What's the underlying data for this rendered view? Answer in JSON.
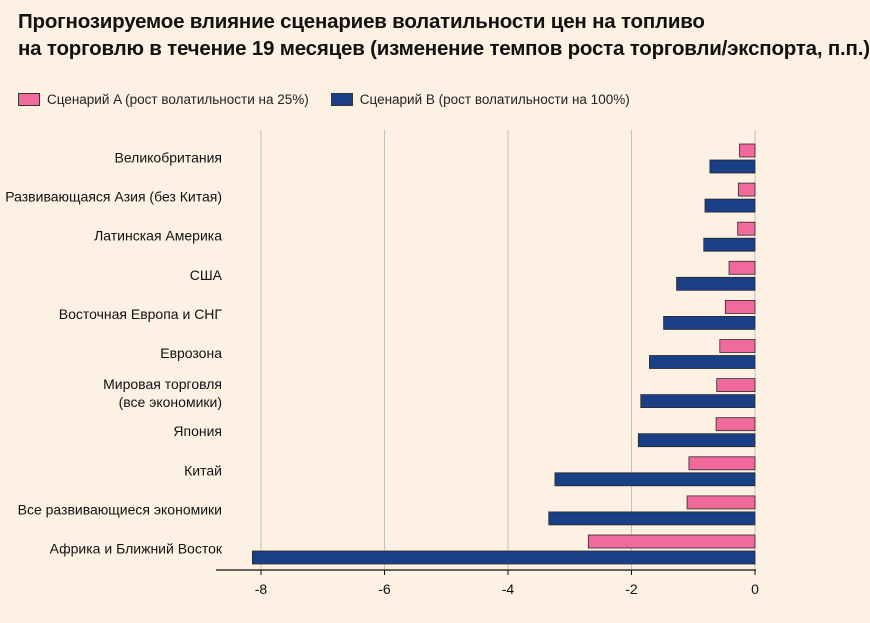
{
  "title_line1": "Прогнозируемое влияние сценариев волатильности цен на топливо",
  "title_line2": "на торговлю в течение 19 месяцев (изменение темпов роста торговли/экспорта, п.п.)",
  "chart_data": {
    "type": "bar",
    "orientation": "horizontal",
    "title": "Прогнозируемое влияние сценариев волатильности цен на топливо на торговлю в течение 19 месяцев (изменение темпов роста торговли/экспорта, п.п.)",
    "categories": [
      [
        "Великобритания"
      ],
      [
        "Развивающаяся Азия (без Китая)"
      ],
      [
        "Латинская Америка"
      ],
      [
        "США"
      ],
      [
        "Восточная Европа и СНГ"
      ],
      [
        "Еврозона"
      ],
      [
        "Мировая торговля",
        "(все экономики)"
      ],
      [
        "Япония"
      ],
      [
        "Китай"
      ],
      [
        "Все развивающиеся экономики"
      ],
      [
        "Африка и Ближний Восток"
      ]
    ],
    "series": [
      {
        "name": "Сценарий A (рост волатильности на 25%)",
        "color": "#f06a9c",
        "values": [
          -0.25,
          -0.27,
          -0.28,
          -0.42,
          -0.48,
          -0.57,
          -0.62,
          -0.63,
          -1.07,
          -1.1,
          -2.7
        ]
      },
      {
        "name": "Сценарий B (рост волатильности на 100%)",
        "color": "#1b3f86",
        "values": [
          -0.73,
          -0.81,
          -0.83,
          -1.27,
          -1.48,
          -1.71,
          -1.85,
          -1.89,
          -3.24,
          -3.34,
          -8.14
        ]
      }
    ],
    "xlim": [
      -8.3,
      0
    ],
    "xticks": [
      -8,
      -6,
      -4,
      -2,
      0
    ],
    "xtick_labels": [
      "-8",
      "-6",
      "-4",
      "-2",
      "0"
    ],
    "grid": true,
    "legend_position": "top-left"
  }
}
